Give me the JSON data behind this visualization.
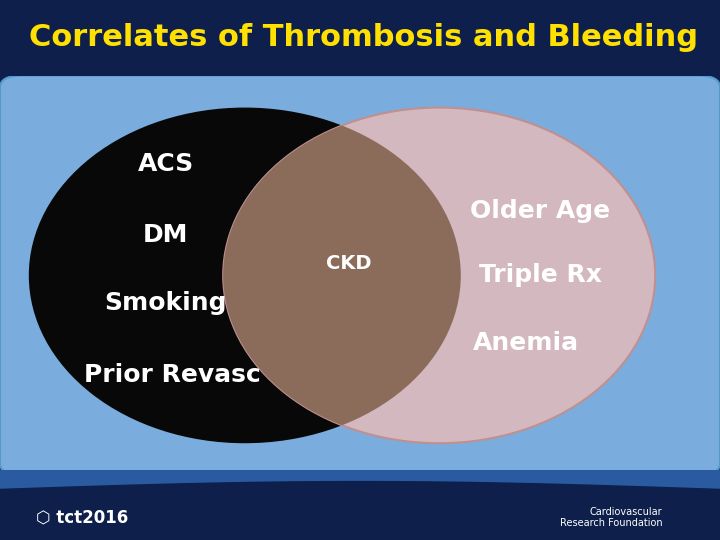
{
  "title": "Correlates of Thrombosis and Bleeding",
  "title_color": "#FFE000",
  "title_fontsize": 22,
  "bg_outer_color": "#0d1f4a",
  "bg_inner_color": "#7aaddd",
  "left_circle_color": "#080808",
  "right_circle_color": "#d4b8c0",
  "right_circle_edge": "#c09090",
  "overlap_color": "#8B6B5A",
  "left_labels": [
    "ACS",
    "DM",
    "Smoking",
    "Prior Revasc"
  ],
  "right_labels": [
    "Older Age",
    "Triple Rx",
    "Anemia"
  ],
  "overlap_label": "CKD",
  "footer_bg_color": "#1e3a8a",
  "tct_text": "tct2016",
  "label_fontsize": 18,
  "ckd_fontsize": 14
}
